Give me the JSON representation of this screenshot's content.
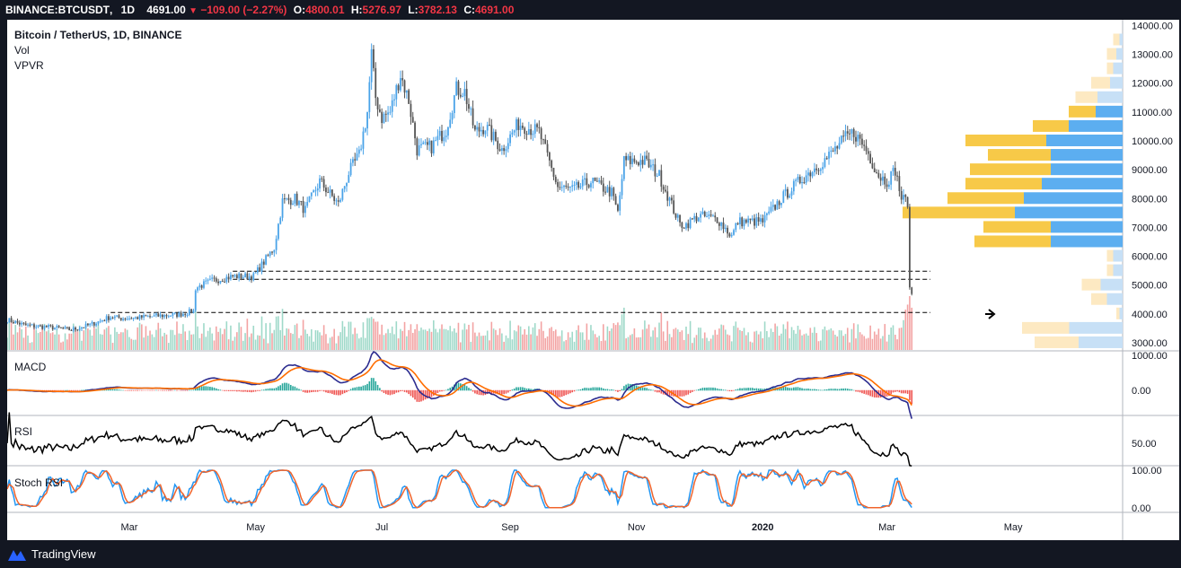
{
  "header": {
    "symbol": "BINANCE:BTCUSDT",
    "interval": "1D",
    "last": "4691.00",
    "change": "−109.00 (−2.27%)",
    "o_label": "O:",
    "o_value": "4800.01",
    "h_label": "H:",
    "h_value": "5276.97",
    "l_label": "L:",
    "l_value": "3782.13",
    "c_label": "C:",
    "c_value": "4691.00"
  },
  "legend": {
    "title": "Bitcoin / TetherUS, 1D, BINANCE",
    "vol": "Vol",
    "vpvr": "VPVR",
    "macd": "MACD",
    "rsi": "RSI",
    "stoch": "Stoch RSI"
  },
  "footer": {
    "brand": "TradingView"
  },
  "colors": {
    "up": "#4aa3e8",
    "down": "#555555",
    "vol_up": "#9fd9c9",
    "vol_down": "#f3a3a3",
    "macd_line": "#2c2c8f",
    "signal_line": "#ff6d00",
    "rsi_line": "#000000",
    "stoch_k": "#2196f3",
    "stoch_d": "#f0642c",
    "vpvr_up": "#5caef0",
    "vpvr_down": "#f7c948",
    "vpvr_up_faint": "#c7e0f6",
    "vpvr_down_faint": "#fde9c2"
  },
  "chart_data": {
    "type": "candlestick",
    "title": "Bitcoin / TetherUS, 1D, BINANCE",
    "price_axis": {
      "ticks": [
        "14000.00",
        "13000.00",
        "12000.00",
        "11000.00",
        "10000.00",
        "9000.00",
        "8000.00",
        "7000.00",
        "6000.00",
        "5000.00",
        "4000.00",
        "3000.00"
      ],
      "ylim": [
        2750,
        14200
      ]
    },
    "time_axis": {
      "ticks": [
        {
          "label": "Mar",
          "bold": false
        },
        {
          "label": "May",
          "bold": false
        },
        {
          "label": "Jul",
          "bold": false
        },
        {
          "label": "Sep",
          "bold": false
        },
        {
          "label": "Nov",
          "bold": false
        },
        {
          "label": "2020",
          "bold": true
        },
        {
          "label": "Mar",
          "bold": false
        },
        {
          "label": "May",
          "bold": false
        }
      ]
    },
    "price_path": [
      [
        "2019-01-01",
        3800
      ],
      [
        "2019-01-10",
        3600
      ],
      [
        "2019-01-20",
        3550
      ],
      [
        "2019-02-01",
        3450
      ],
      [
        "2019-02-10",
        3620
      ],
      [
        "2019-02-20",
        3900
      ],
      [
        "2019-02-25",
        3850
      ],
      [
        "2019-03-05",
        3870
      ],
      [
        "2019-03-15",
        3930
      ],
      [
        "2019-03-25",
        3980
      ],
      [
        "2019-04-01",
        4100
      ],
      [
        "2019-04-02",
        4900
      ],
      [
        "2019-04-10",
        5150
      ],
      [
        "2019-04-20",
        5300
      ],
      [
        "2019-04-30",
        5300
      ],
      [
        "2019-05-10",
        6300
      ],
      [
        "2019-05-14",
        7900
      ],
      [
        "2019-05-20",
        8000
      ],
      [
        "2019-05-25",
        7600
      ],
      [
        "2019-06-01",
        8600
      ],
      [
        "2019-06-10",
        7800
      ],
      [
        "2019-06-15",
        8900
      ],
      [
        "2019-06-20",
        9500
      ],
      [
        "2019-06-24",
        11000
      ],
      [
        "2019-06-26",
        13000
      ],
      [
        "2019-06-28",
        11500
      ],
      [
        "2019-07-01",
        10800
      ],
      [
        "2019-07-05",
        11000
      ],
      [
        "2019-07-10",
        12300
      ],
      [
        "2019-07-14",
        11400
      ],
      [
        "2019-07-18",
        9700
      ],
      [
        "2019-07-25",
        9800
      ],
      [
        "2019-08-01",
        10400
      ],
      [
        "2019-08-06",
        11800
      ],
      [
        "2019-08-10",
        11700
      ],
      [
        "2019-08-15",
        10300
      ],
      [
        "2019-08-20",
        10500
      ],
      [
        "2019-08-28",
        9700
      ],
      [
        "2019-09-05",
        10600
      ],
      [
        "2019-09-15",
        10300
      ],
      [
        "2019-09-24",
        8400
      ],
      [
        "2019-10-01",
        8300
      ],
      [
        "2019-10-10",
        8600
      ],
      [
        "2019-10-20",
        8200
      ],
      [
        "2019-10-23",
        7500
      ],
      [
        "2019-10-26",
        9300
      ],
      [
        "2019-11-05",
        9300
      ],
      [
        "2019-11-12",
        8800
      ],
      [
        "2019-11-22",
        7100
      ],
      [
        "2019-11-25",
        7100
      ],
      [
        "2019-12-01",
        7400
      ],
      [
        "2019-12-10",
        7300
      ],
      [
        "2019-12-17",
        6700
      ],
      [
        "2019-12-20",
        7200
      ],
      [
        "2020-01-01",
        7200
      ],
      [
        "2020-01-10",
        8000
      ],
      [
        "2020-01-20",
        8700
      ],
      [
        "2020-02-01",
        9400
      ],
      [
        "2020-02-10",
        10100
      ],
      [
        "2020-02-14",
        10300
      ],
      [
        "2020-02-20",
        9700
      ],
      [
        "2020-02-26",
        8800
      ],
      [
        "2020-03-01",
        8600
      ],
      [
        "2020-03-05",
        9000
      ],
      [
        "2020-03-08",
        8000
      ],
      [
        "2020-03-11",
        7900
      ],
      [
        "2020-03-12",
        4800
      ],
      [
        "2020-03-13",
        4691
      ]
    ],
    "horizontal_levels": [
      5480,
      5200,
      4050
    ],
    "vpvr": [
      {
        "price": 13500,
        "up": 1,
        "down": 2,
        "faint": true
      },
      {
        "price": 13000,
        "up": 2,
        "down": 3,
        "faint": true
      },
      {
        "price": 12500,
        "up": 3,
        "down": 2,
        "faint": true
      },
      {
        "price": 12000,
        "up": 4,
        "down": 6,
        "faint": true
      },
      {
        "price": 11500,
        "up": 8,
        "down": 7,
        "faint": true
      },
      {
        "price": 11000,
        "up": 6,
        "down": 6,
        "faint": false
      },
      {
        "price": 10500,
        "up": 12,
        "down": 8,
        "faint": false
      },
      {
        "price": 10000,
        "up": 17,
        "down": 18,
        "faint": false
      },
      {
        "price": 9500,
        "up": 16,
        "down": 14,
        "faint": false
      },
      {
        "price": 9000,
        "up": 16,
        "down": 18,
        "faint": false
      },
      {
        "price": 8500,
        "up": 18,
        "down": 17,
        "faint": false
      },
      {
        "price": 8000,
        "up": 22,
        "down": 17,
        "faint": false
      },
      {
        "price": 7500,
        "up": 24,
        "down": 25,
        "faint": false
      },
      {
        "price": 7000,
        "up": 16,
        "down": 15,
        "faint": false
      },
      {
        "price": 6500,
        "up": 16,
        "down": 17,
        "faint": false
      },
      {
        "price": 6000,
        "up": 3,
        "down": 2,
        "faint": true
      },
      {
        "price": 5500,
        "up": 3,
        "down": 2,
        "faint": true
      },
      {
        "price": 5000,
        "up": 7,
        "down": 6,
        "faint": true
      },
      {
        "price": 4500,
        "up": 5,
        "down": 5,
        "faint": true
      },
      {
        "price": 4000,
        "up": 1,
        "down": 1,
        "faint": true
      },
      {
        "price": 3500,
        "up": 17,
        "down": 15,
        "faint": true
      },
      {
        "price": 3000,
        "up": 14,
        "down": 14,
        "faint": true
      }
    ],
    "macd": {
      "ticks": [
        "1000.00",
        "0.00"
      ],
      "ylim": [
        -700,
        1100
      ]
    },
    "rsi": {
      "ticks": [
        "50.00"
      ],
      "ylim": [
        15,
        95
      ]
    },
    "stoch_rsi": {
      "ticks": [
        "100.00",
        "0.00"
      ],
      "ylim": [
        -10,
        112
      ]
    }
  }
}
